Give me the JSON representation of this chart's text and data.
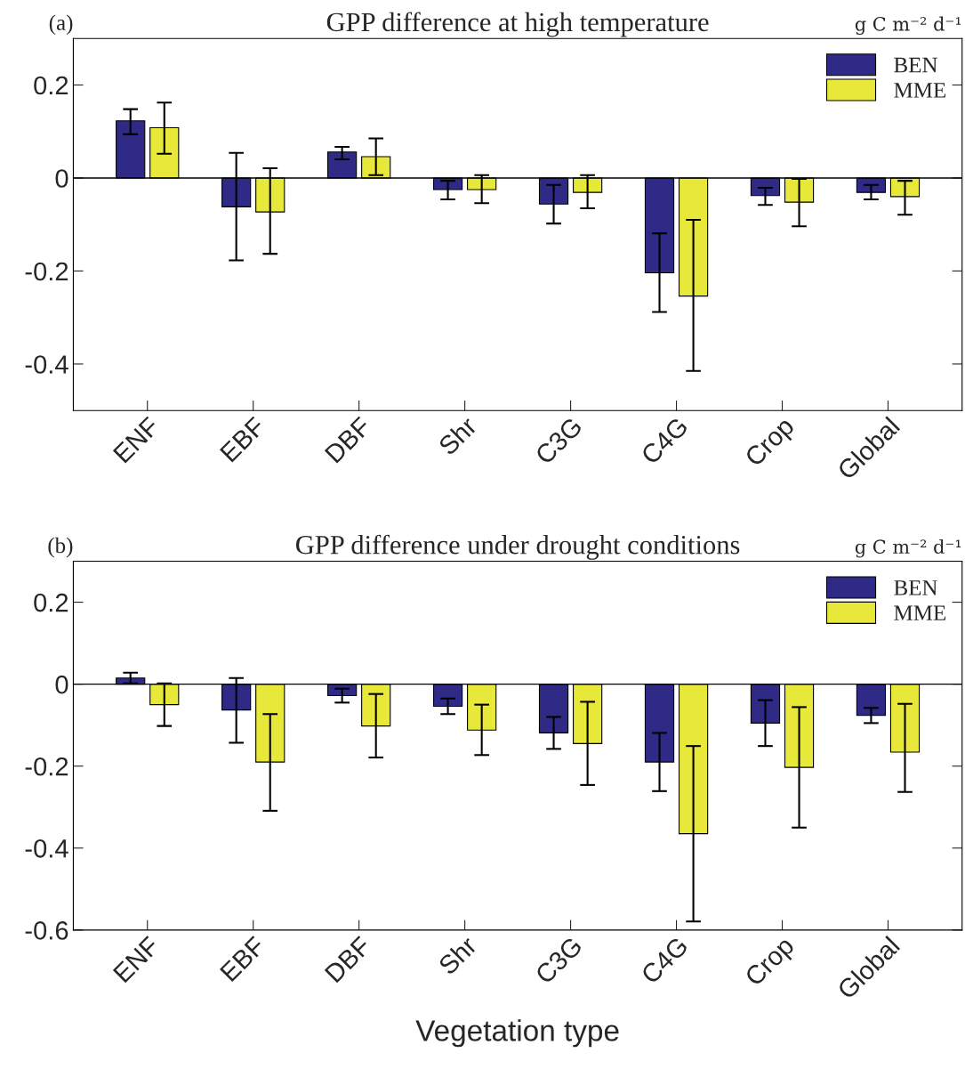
{
  "chart_data": [
    {
      "type": "bar",
      "title": "GPP difference at high temperature",
      "annotations": [
        "(a)",
        "g C m⁻² d⁻¹"
      ],
      "categories": [
        "ENF",
        "EBF",
        "DBF",
        "Shr",
        "C3G",
        "C4G",
        "Crop",
        "Global"
      ],
      "series": [
        {
          "name": "BEN",
          "color": "#2e2a86",
          "values": [
            0.123,
            -0.062,
            0.056,
            -0.025,
            -0.056,
            -0.204,
            -0.038,
            -0.031
          ],
          "errors": [
            [
              0.094,
              0.148
            ],
            [
              -0.177,
              0.054
            ],
            [
              0.04,
              0.067
            ],
            [
              -0.046,
              -0.006
            ],
            [
              -0.098,
              -0.015
            ],
            [
              -0.288,
              -0.119
            ],
            [
              -0.058,
              -0.021
            ],
            [
              -0.046,
              -0.015
            ]
          ]
        },
        {
          "name": "MME",
          "color": "#e8e83a",
          "values": [
            0.108,
            -0.073,
            0.046,
            -0.025,
            -0.031,
            -0.254,
            -0.052,
            -0.04
          ],
          "errors": [
            [
              0.052,
              0.162
            ],
            [
              -0.163,
              0.021
            ],
            [
              0.006,
              0.085
            ],
            [
              -0.054,
              0.006
            ],
            [
              -0.065,
              0.006
            ],
            [
              -0.415,
              -0.09
            ],
            [
              -0.104,
              -0.002
            ],
            [
              -0.079,
              -0.006
            ]
          ]
        }
      ],
      "ylim": [
        -0.5,
        0.3
      ],
      "yticks": [
        0.2,
        0,
        -0.2,
        -0.4
      ],
      "ref_lines": [
        {
          "axis": "y",
          "value": 0,
          "color": "#000000"
        }
      ],
      "legend": "top right",
      "grid": false
    },
    {
      "type": "bar",
      "title": "GPP difference under drought conditions",
      "xlabel": "Vegetation type",
      "annotations": [
        "(b)",
        "g C m⁻² d⁻¹"
      ],
      "categories": [
        "ENF",
        "EBF",
        "DBF",
        "Shr",
        "C3G",
        "C4G",
        "Crop",
        "Global"
      ],
      "series": [
        {
          "name": "BEN",
          "color": "#2e2a86",
          "values": [
            0.015,
            -0.063,
            -0.028,
            -0.054,
            -0.119,
            -0.19,
            -0.095,
            -0.076
          ],
          "errors": [
            [
              0.002,
              0.028
            ],
            [
              -0.143,
              0.015
            ],
            [
              -0.045,
              -0.011
            ],
            [
              -0.073,
              -0.035
            ],
            [
              -0.158,
              -0.08
            ],
            [
              -0.261,
              -0.119
            ],
            [
              -0.151,
              -0.039
            ],
            [
              -0.095,
              -0.058
            ]
          ]
        },
        {
          "name": "MME",
          "color": "#e8e83a",
          "values": [
            -0.05,
            -0.19,
            -0.102,
            -0.112,
            -0.145,
            -0.365,
            -0.203,
            -0.166
          ],
          "errors": [
            [
              -0.102,
              0.002
            ],
            [
              -0.309,
              -0.073
            ],
            [
              -0.179,
              -0.024
            ],
            [
              -0.173,
              -0.05
            ],
            [
              -0.246,
              -0.043
            ],
            [
              -0.579,
              -0.151
            ],
            [
              -0.35,
              -0.056
            ],
            [
              -0.263,
              -0.048
            ]
          ]
        }
      ],
      "ylim": [
        -0.6,
        0.3
      ],
      "yticks": [
        0.2,
        0,
        -0.2,
        -0.4,
        -0.6
      ],
      "ref_lines": [
        {
          "axis": "y",
          "value": 0,
          "color": "#000000"
        }
      ],
      "legend": "top right",
      "grid": false
    }
  ]
}
